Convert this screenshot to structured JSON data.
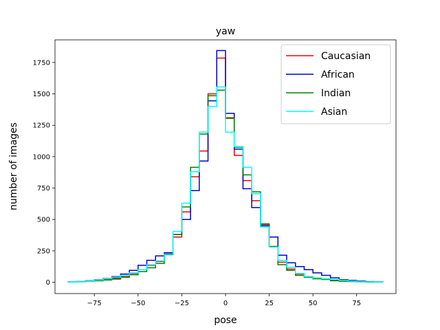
{
  "chart_data": {
    "type": "line",
    "title": "yaw",
    "xlabel": "pose",
    "ylabel": "number of images",
    "xlim": [
      -97.5,
      97.5
    ],
    "ylim": [
      -90,
      1930
    ],
    "x_ticks": [
      -75,
      -50,
      -25,
      0,
      25,
      50,
      75
    ],
    "x_tick_labels": [
      "−75",
      "−50",
      "−25",
      "0",
      "25",
      "50",
      "75"
    ],
    "y_ticks": [
      0,
      250,
      500,
      750,
      1000,
      1250,
      1500,
      1750
    ],
    "y_tick_labels": [
      "0",
      "250",
      "500",
      "750",
      "1000",
      "1250",
      "1500",
      "1750"
    ],
    "grid": false,
    "legend_position": "top-right",
    "bin_edges": [
      -90,
      -85,
      -80,
      -75,
      -70,
      -65,
      -60,
      -55,
      -50,
      -45,
      -40,
      -35,
      -30,
      -25,
      -20,
      -15,
      -10,
      -5,
      0,
      5,
      10,
      15,
      20,
      25,
      30,
      35,
      40,
      45,
      50,
      55,
      60,
      65,
      70,
      75,
      80,
      85,
      90
    ],
    "series": [
      {
        "name": "Caucasian",
        "color": "#ff0000",
        "values": [
          2,
          5,
          10,
          15,
          22,
          32,
          45,
          70,
          100,
          135,
          165,
          230,
          360,
          560,
          840,
          1045,
          1500,
          1785,
          1310,
          1010,
          810,
          650,
          460,
          285,
          160,
          105,
          65,
          45,
          32,
          25,
          18,
          12,
          8,
          5,
          3,
          2
        ]
      },
      {
        "name": "African",
        "color": "#0000cd",
        "values": [
          3,
          6,
          12,
          20,
          30,
          45,
          65,
          95,
          135,
          175,
          210,
          235,
          380,
          500,
          730,
          965,
          1445,
          1845,
          1345,
          1060,
          745,
          595,
          450,
          360,
          215,
          155,
          125,
          100,
          75,
          55,
          35,
          20,
          15,
          10,
          5,
          3
        ]
      },
      {
        "name": "Indian",
        "color": "#008000",
        "values": [
          2,
          4,
          8,
          12,
          18,
          25,
          40,
          60,
          85,
          115,
          150,
          220,
          380,
          600,
          915,
          1180,
          1485,
          1530,
          1305,
          1075,
          855,
          720,
          465,
          285,
          140,
          95,
          55,
          40,
          28,
          22,
          12,
          8,
          6,
          4,
          2,
          1
        ]
      },
      {
        "name": "Asian",
        "color": "#00ffff",
        "values": [
          2,
          5,
          10,
          18,
          28,
          40,
          55,
          75,
          100,
          140,
          170,
          225,
          405,
          630,
          880,
          1195,
          1400,
          1555,
          1195,
          1080,
          915,
          705,
          440,
          280,
          175,
          120,
          70,
          45,
          35,
          28,
          22,
          15,
          10,
          6,
          4,
          2
        ]
      }
    ]
  }
}
